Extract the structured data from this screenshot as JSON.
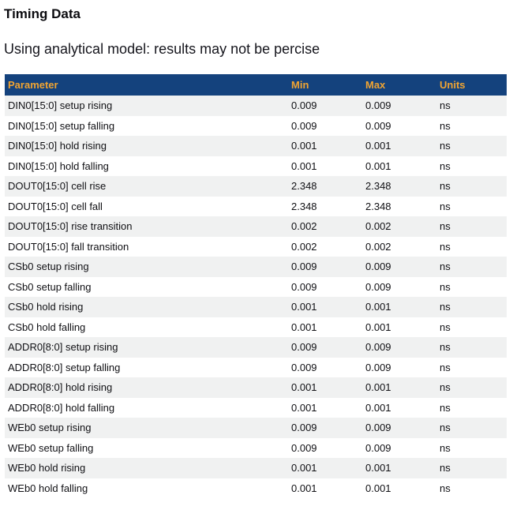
{
  "page": {
    "title": "Timing Data",
    "subtitle": "Using analytical model: results may not be percise"
  },
  "colors": {
    "table_header_bg": "#14427D",
    "table_header_text": "#F0A432",
    "row_stripe_bg": "#F0F1F1",
    "body_text": "#101014"
  },
  "table": {
    "columns": [
      "Parameter",
      "Min",
      "Max",
      "Units"
    ],
    "rows": [
      {
        "parameter": "DIN0[15:0] setup rising",
        "min": "0.009",
        "max": "0.009",
        "units": "ns"
      },
      {
        "parameter": "DIN0[15:0] setup falling",
        "min": "0.009",
        "max": "0.009",
        "units": "ns"
      },
      {
        "parameter": "DIN0[15:0] hold rising",
        "min": "0.001",
        "max": "0.001",
        "units": "ns"
      },
      {
        "parameter": "DIN0[15:0] hold falling",
        "min": "0.001",
        "max": "0.001",
        "units": "ns"
      },
      {
        "parameter": "DOUT0[15:0] cell rise",
        "min": "2.348",
        "max": "2.348",
        "units": "ns"
      },
      {
        "parameter": "DOUT0[15:0] cell fall",
        "min": "2.348",
        "max": "2.348",
        "units": "ns"
      },
      {
        "parameter": "DOUT0[15:0] rise transition",
        "min": "0.002",
        "max": "0.002",
        "units": "ns"
      },
      {
        "parameter": "DOUT0[15:0] fall transition",
        "min": "0.002",
        "max": "0.002",
        "units": "ns"
      },
      {
        "parameter": "CSb0 setup rising",
        "min": "0.009",
        "max": "0.009",
        "units": "ns"
      },
      {
        "parameter": "CSb0 setup falling",
        "min": "0.009",
        "max": "0.009",
        "units": "ns"
      },
      {
        "parameter": "CSb0 hold rising",
        "min": "0.001",
        "max": "0.001",
        "units": "ns"
      },
      {
        "parameter": "CSb0 hold falling",
        "min": "0.001",
        "max": "0.001",
        "units": "ns"
      },
      {
        "parameter": "ADDR0[8:0] setup rising",
        "min": "0.009",
        "max": "0.009",
        "units": "ns"
      },
      {
        "parameter": "ADDR0[8:0] setup falling",
        "min": "0.009",
        "max": "0.009",
        "units": "ns"
      },
      {
        "parameter": "ADDR0[8:0] hold rising",
        "min": "0.001",
        "max": "0.001",
        "units": "ns"
      },
      {
        "parameter": "ADDR0[8:0] hold falling",
        "min": "0.001",
        "max": "0.001",
        "units": "ns"
      },
      {
        "parameter": "WEb0 setup rising",
        "min": "0.009",
        "max": "0.009",
        "units": "ns"
      },
      {
        "parameter": "WEb0 setup falling",
        "min": "0.009",
        "max": "0.009",
        "units": "ns"
      },
      {
        "parameter": "WEb0 hold rising",
        "min": "0.001",
        "max": "0.001",
        "units": "ns"
      },
      {
        "parameter": "WEb0 hold falling",
        "min": "0.001",
        "max": "0.001",
        "units": "ns"
      }
    ]
  }
}
